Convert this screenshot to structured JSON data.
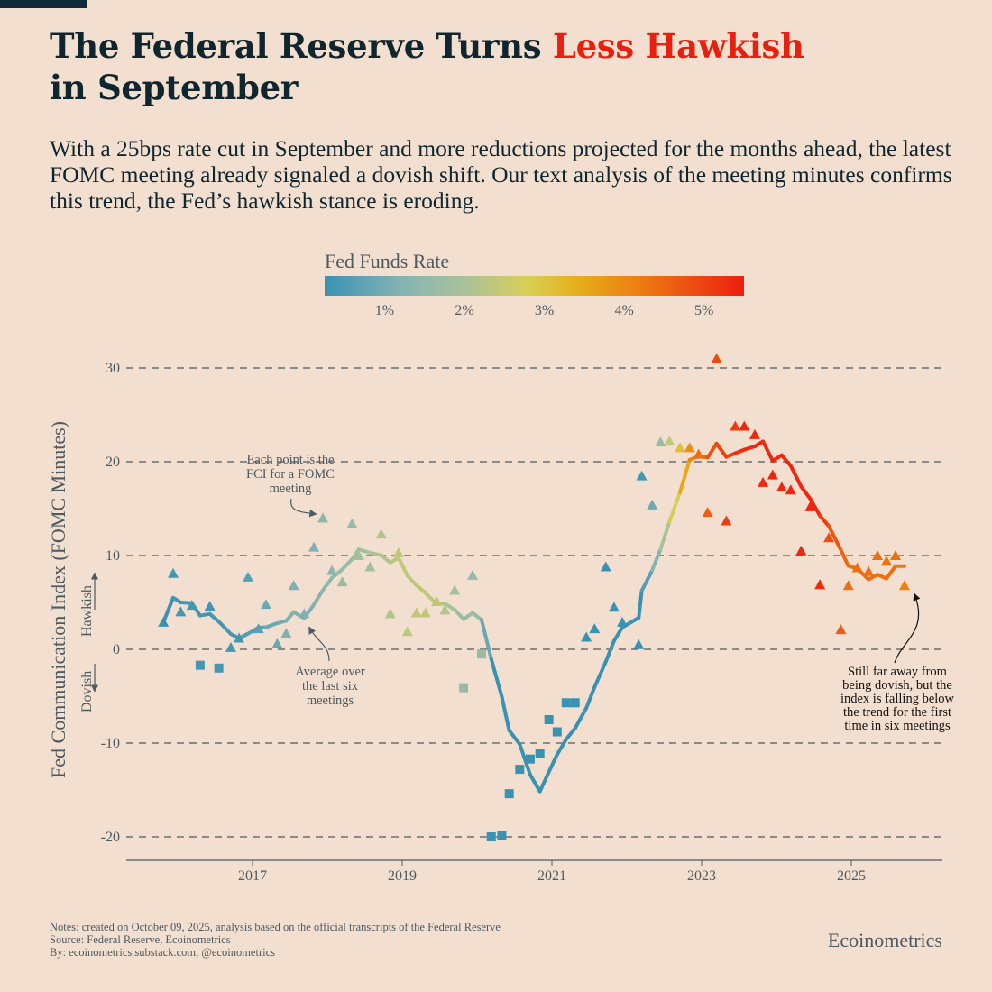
{
  "header": {
    "title_part1": "The Federal Reserve Turns ",
    "title_highlight": "Less Hawkish",
    "title_part2": "in September",
    "subtitle": "With a 25bps rate cut in September and more reductions projected for the months ahead, the latest FOMC meeting already signaled a dovish shift. Our text analysis of the meeting minutes confirms this trend, the Fed’s hawkish stance is eroding."
  },
  "colors": {
    "background": "#f3dfcf",
    "text": "#10262f",
    "highlight": "#e8200f",
    "axis": "#4d5a60"
  },
  "chart_data": {
    "type": "scatter",
    "title": "The Federal Reserve Turns Less Hawkish in September",
    "ylabel": "Fed Communication Index (FOMC Minutes)",
    "xlabel": "",
    "ylim": [
      -22,
      32
    ],
    "xlim": [
      2015.3,
      2026.2
    ],
    "yticks": [
      30,
      20,
      10,
      0,
      -10,
      -20
    ],
    "ytick_labels": [
      "30",
      "20",
      "10",
      "0",
      "-10",
      "-20"
    ],
    "xticks": [
      2017,
      2019,
      2021,
      2023,
      2025
    ],
    "xtick_labels": [
      "2017",
      "2019",
      "2021",
      "2023",
      "2025"
    ],
    "grid": "horizontal dashed",
    "colorbar": {
      "label": "Fed Funds Rate",
      "range": [
        0.25,
        5.5
      ],
      "ticks": [
        1,
        2,
        3,
        4,
        5
      ],
      "tick_labels": [
        "1%",
        "2%",
        "3%",
        "4%",
        "5%"
      ],
      "stops": [
        [
          0.25,
          "#3a92b3"
        ],
        [
          1.2,
          "#84b3b4"
        ],
        [
          2.0,
          "#a9c29a"
        ],
        [
          2.8,
          "#d8cf55"
        ],
        [
          3.4,
          "#e6b01a"
        ],
        [
          4.2,
          "#ec7d12"
        ],
        [
          5.5,
          "#ec1f10"
        ]
      ]
    },
    "axis_arrows": {
      "up": "Hawkish",
      "down": "Dovish"
    },
    "line_series": {
      "name": "Average over the last six meetings",
      "window": 6
    },
    "points": [
      {
        "x": 2015.81,
        "y": 2.9,
        "rate": 0.13
      },
      {
        "x": 2015.94,
        "y": 8.1,
        "rate": 0.38
      },
      {
        "x": 2016.04,
        "y": 4.0,
        "rate": 0.38
      },
      {
        "x": 2016.19,
        "y": 4.7,
        "rate": 0.38
      },
      {
        "x": 2016.3,
        "y": -1.7,
        "rate": 0.38
      },
      {
        "x": 2016.43,
        "y": 4.6,
        "rate": 0.38
      },
      {
        "x": 2016.55,
        "y": -2.0,
        "rate": 0.38
      },
      {
        "x": 2016.71,
        "y": 0.2,
        "rate": 0.38
      },
      {
        "x": 2016.82,
        "y": 1.2,
        "rate": 0.38
      },
      {
        "x": 2016.94,
        "y": 7.7,
        "rate": 0.63
      },
      {
        "x": 2017.08,
        "y": 2.2,
        "rate": 0.63
      },
      {
        "x": 2017.18,
        "y": 4.8,
        "rate": 0.88
      },
      {
        "x": 2017.33,
        "y": 0.6,
        "rate": 0.88
      },
      {
        "x": 2017.45,
        "y": 1.7,
        "rate": 1.13
      },
      {
        "x": 2017.55,
        "y": 6.8,
        "rate": 1.13
      },
      {
        "x": 2017.69,
        "y": 3.8,
        "rate": 1.13
      },
      {
        "x": 2017.82,
        "y": 10.9,
        "rate": 1.13
      },
      {
        "x": 2017.94,
        "y": 14.0,
        "rate": 1.38
      },
      {
        "x": 2018.06,
        "y": 8.4,
        "rate": 1.38
      },
      {
        "x": 2018.2,
        "y": 7.2,
        "rate": 1.63
      },
      {
        "x": 2018.33,
        "y": 13.4,
        "rate": 1.63
      },
      {
        "x": 2018.42,
        "y": 10.0,
        "rate": 1.88
      },
      {
        "x": 2018.57,
        "y": 8.8,
        "rate": 1.88
      },
      {
        "x": 2018.72,
        "y": 12.3,
        "rate": 2.13
      },
      {
        "x": 2018.84,
        "y": 3.8,
        "rate": 2.13
      },
      {
        "x": 2018.95,
        "y": 10.3,
        "rate": 2.38
      },
      {
        "x": 2019.07,
        "y": 1.9,
        "rate": 2.38
      },
      {
        "x": 2019.19,
        "y": 3.9,
        "rate": 2.38
      },
      {
        "x": 2019.31,
        "y": 3.9,
        "rate": 2.38
      },
      {
        "x": 2019.46,
        "y": 5.1,
        "rate": 2.38
      },
      {
        "x": 2019.57,
        "y": 4.2,
        "rate": 2.13
      },
      {
        "x": 2019.7,
        "y": 6.3,
        "rate": 1.88
      },
      {
        "x": 2019.82,
        "y": -4.1,
        "rate": 1.63
      },
      {
        "x": 2019.94,
        "y": 7.9,
        "rate": 1.63
      },
      {
        "x": 2020.06,
        "y": -0.5,
        "rate": 1.63
      },
      {
        "x": 2020.19,
        "y": -20.0,
        "rate": 0.13
      },
      {
        "x": 2020.33,
        "y": -19.9,
        "rate": 0.13
      },
      {
        "x": 2020.43,
        "y": -15.4,
        "rate": 0.13
      },
      {
        "x": 2020.57,
        "y": -12.8,
        "rate": 0.13
      },
      {
        "x": 2020.71,
        "y": -11.7,
        "rate": 0.13
      },
      {
        "x": 2020.84,
        "y": -11.1,
        "rate": 0.13
      },
      {
        "x": 2020.96,
        "y": -7.5,
        "rate": 0.13
      },
      {
        "x": 2021.07,
        "y": -8.8,
        "rate": 0.13
      },
      {
        "x": 2021.19,
        "y": -5.7,
        "rate": 0.13
      },
      {
        "x": 2021.31,
        "y": -5.7,
        "rate": 0.13
      },
      {
        "x": 2021.46,
        "y": 1.3,
        "rate": 0.13
      },
      {
        "x": 2021.57,
        "y": 2.2,
        "rate": 0.13
      },
      {
        "x": 2021.72,
        "y": 8.8,
        "rate": 0.13
      },
      {
        "x": 2021.83,
        "y": 4.5,
        "rate": 0.13
      },
      {
        "x": 2021.94,
        "y": 2.9,
        "rate": 0.13
      },
      {
        "x": 2022.16,
        "y": 0.5,
        "rate": 0.13
      },
      {
        "x": 2022.2,
        "y": 18.5,
        "rate": 0.38
      },
      {
        "x": 2022.34,
        "y": 15.4,
        "rate": 0.88
      },
      {
        "x": 2022.45,
        "y": 22.1,
        "rate": 1.63
      },
      {
        "x": 2022.57,
        "y": 22.2,
        "rate": 2.38
      },
      {
        "x": 2022.71,
        "y": 21.5,
        "rate": 3.13
      },
      {
        "x": 2022.84,
        "y": 21.5,
        "rate": 3.88
      },
      {
        "x": 2022.96,
        "y": 20.8,
        "rate": 4.38
      },
      {
        "x": 2023.08,
        "y": 14.6,
        "rate": 4.63
      },
      {
        "x": 2023.2,
        "y": 31.0,
        "rate": 4.88
      },
      {
        "x": 2023.33,
        "y": 13.7,
        "rate": 5.13
      },
      {
        "x": 2023.45,
        "y": 23.8,
        "rate": 5.13
      },
      {
        "x": 2023.57,
        "y": 23.8,
        "rate": 5.38
      },
      {
        "x": 2023.71,
        "y": 22.9,
        "rate": 5.38
      },
      {
        "x": 2023.82,
        "y": 17.8,
        "rate": 5.38
      },
      {
        "x": 2023.95,
        "y": 18.6,
        "rate": 5.38
      },
      {
        "x": 2024.07,
        "y": 17.3,
        "rate": 5.38
      },
      {
        "x": 2024.19,
        "y": 17.0,
        "rate": 5.38
      },
      {
        "x": 2024.33,
        "y": 10.5,
        "rate": 5.38
      },
      {
        "x": 2024.45,
        "y": 15.2,
        "rate": 5.38
      },
      {
        "x": 2024.58,
        "y": 6.9,
        "rate": 5.38
      },
      {
        "x": 2024.7,
        "y": 11.9,
        "rate": 4.88
      },
      {
        "x": 2024.86,
        "y": 2.1,
        "rate": 4.63
      },
      {
        "x": 2024.96,
        "y": 6.8,
        "rate": 4.38
      },
      {
        "x": 2025.08,
        "y": 8.7,
        "rate": 4.38
      },
      {
        "x": 2025.23,
        "y": 8.3,
        "rate": 4.38
      },
      {
        "x": 2025.35,
        "y": 10.0,
        "rate": 4.38
      },
      {
        "x": 2025.47,
        "y": 9.4,
        "rate": 4.38
      },
      {
        "x": 2025.59,
        "y": 10.0,
        "rate": 4.38
      },
      {
        "x": 2025.71,
        "y": 6.8,
        "rate": 4.13
      }
    ],
    "annotations": {
      "points_note": [
        "Each point is the",
        "FCI for a FOMC",
        "meeting"
      ],
      "line_note": [
        "Average over",
        "the last six",
        "meetings"
      ],
      "latest_note": [
        "Still far away from",
        "being dovish, but the",
        "index is falling below",
        "the trend for the first",
        "time in six meetings"
      ]
    }
  },
  "footer": {
    "notes": "Notes: created on October 09, 2025, analysis based on the official transcripts of the Federal Reserve",
    "source": "Source: Federal Reserve, Ecoinometrics",
    "by": "By: ecoinometrics.substack.com, @ecoinometrics",
    "brand": "Ecoinometrics"
  }
}
